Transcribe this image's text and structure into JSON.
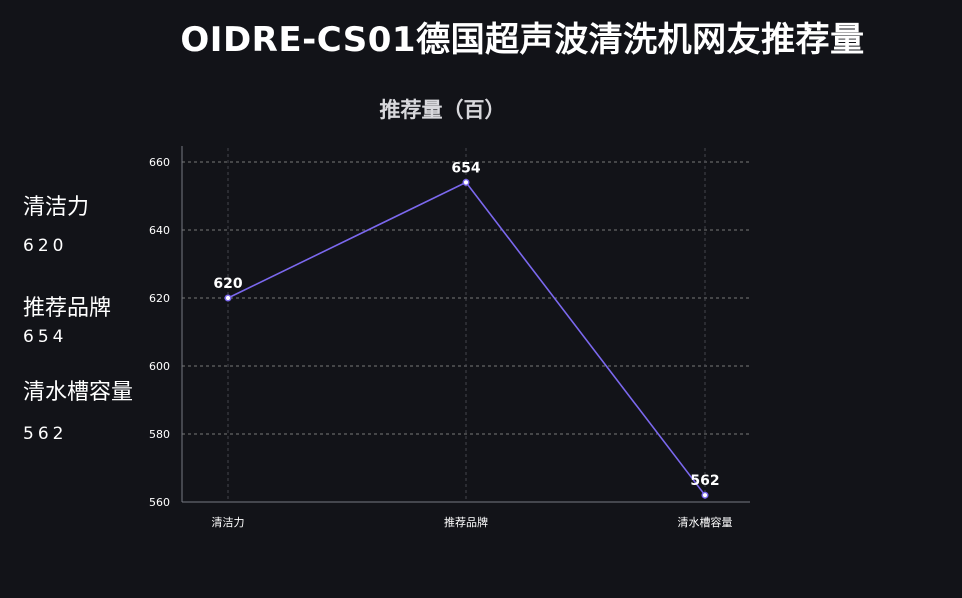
{
  "page": {
    "title": "OIDRE-CS01德国超声波清洗机网友推荐量"
  },
  "stats": [
    {
      "label": "清洁力",
      "value": "620"
    },
    {
      "label": "推荐品牌",
      "value": "654"
    },
    {
      "label": "清水槽容量",
      "value": "562"
    }
  ],
  "colors": {
    "background": "#121318",
    "line": "#7b68ee",
    "grid": "#8a8a8a",
    "text": "#ffffff"
  },
  "chart_data": {
    "type": "line",
    "title": "推荐量（百）",
    "categories": [
      "清洁力",
      "推荐品牌",
      "清水槽容量"
    ],
    "series": [
      {
        "values": [
          620,
          654,
          562
        ]
      }
    ],
    "ylim": [
      560,
      660
    ],
    "yticks": [
      560,
      580,
      600,
      620,
      640,
      660
    ],
    "grid": true,
    "data_labels": true
  }
}
